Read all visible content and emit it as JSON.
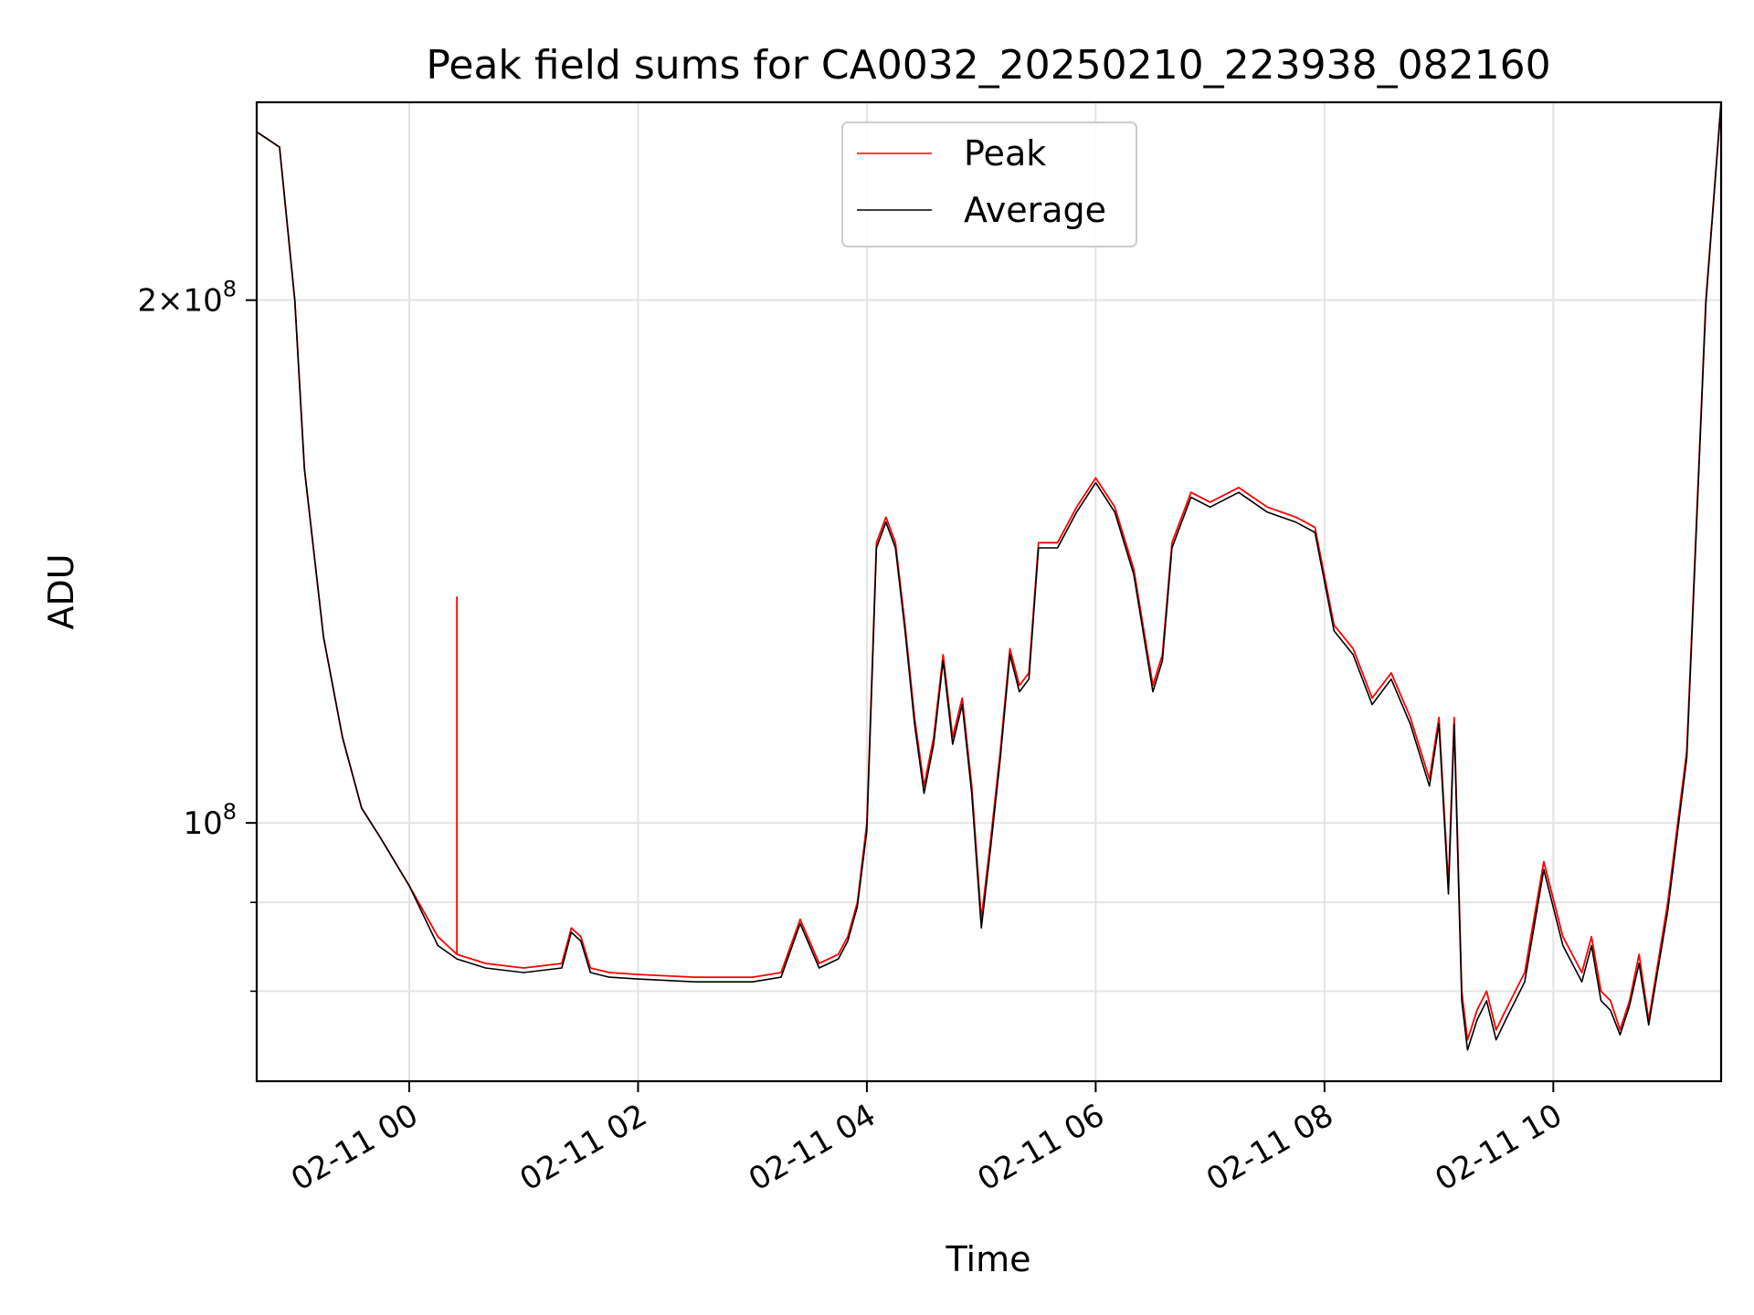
{
  "chart_data": {
    "type": "line",
    "title": "Peak field sums for CA0032_20250210_223938_082160",
    "xlabel": "Time",
    "ylabel": "ADU",
    "y_scale": "log",
    "ylim": [
      71000000,
      260000000
    ],
    "xlim": [
      "2025-02-10 22:40",
      "2025-02-11 11:28"
    ],
    "grid": true,
    "legend_position": "top-center",
    "x_tick_labels": [
      "02-11 00",
      "02-11 02",
      "02-11 04",
      "02-11 06",
      "02-11 08",
      "02-11 10"
    ],
    "x_tick_values": [
      "2025-02-11 00:00",
      "2025-02-11 02:00",
      "2025-02-11 04:00",
      "2025-02-11 06:00",
      "2025-02-11 08:00",
      "2025-02-11 10:00"
    ],
    "y_tick_labels": [
      {
        "value": 100000000,
        "mantissa": "",
        "exponent": "8"
      },
      {
        "value": 200000000,
        "mantissa": "2",
        "exponent": "8"
      }
    ],
    "y_minor_ticks": [
      80000000,
      90000000
    ],
    "x": [
      "2025-02-10 22:40",
      "2025-02-10 22:52",
      "2025-02-10 23:00",
      "2025-02-10 23:05",
      "2025-02-10 23:15",
      "2025-02-10 23:25",
      "2025-02-10 23:35",
      "2025-02-10 23:45",
      "2025-02-11 00:00",
      "2025-02-11 00:15",
      "2025-02-11 00:25",
      "2025-02-11 00:40",
      "2025-02-11 01:00",
      "2025-02-11 01:20",
      "2025-02-11 01:25",
      "2025-02-11 01:30",
      "2025-02-11 01:35",
      "2025-02-11 01:45",
      "2025-02-11 02:00",
      "2025-02-11 02:30",
      "2025-02-11 03:00",
      "2025-02-11 03:15",
      "2025-02-11 03:25",
      "2025-02-11 03:35",
      "2025-02-11 03:45",
      "2025-02-11 03:50",
      "2025-02-11 03:55",
      "2025-02-11 04:00",
      "2025-02-11 04:05",
      "2025-02-11 04:10",
      "2025-02-11 04:15",
      "2025-02-11 04:20",
      "2025-02-11 04:25",
      "2025-02-11 04:30",
      "2025-02-11 04:35",
      "2025-02-11 04:40",
      "2025-02-11 04:45",
      "2025-02-11 04:50",
      "2025-02-11 04:55",
      "2025-02-11 05:00",
      "2025-02-11 05:05",
      "2025-02-11 05:10",
      "2025-02-11 05:15",
      "2025-02-11 05:20",
      "2025-02-11 05:25",
      "2025-02-11 05:30",
      "2025-02-11 05:40",
      "2025-02-11 05:50",
      "2025-02-11 06:00",
      "2025-02-11 06:10",
      "2025-02-11 06:20",
      "2025-02-11 06:30",
      "2025-02-11 06:35",
      "2025-02-11 06:40",
      "2025-02-11 06:50",
      "2025-02-11 07:00",
      "2025-02-11 07:15",
      "2025-02-11 07:30",
      "2025-02-11 07:45",
      "2025-02-11 07:55",
      "2025-02-11 08:05",
      "2025-02-11 08:15",
      "2025-02-11 08:25",
      "2025-02-11 08:35",
      "2025-02-11 08:45",
      "2025-02-11 08:55",
      "2025-02-11 09:00",
      "2025-02-11 09:05",
      "2025-02-11 09:08",
      "2025-02-11 09:12",
      "2025-02-11 09:15",
      "2025-02-11 09:20",
      "2025-02-11 09:25",
      "2025-02-11 09:30",
      "2025-02-11 09:35",
      "2025-02-11 09:45",
      "2025-02-11 09:55",
      "2025-02-11 10:05",
      "2025-02-11 10:15",
      "2025-02-11 10:20",
      "2025-02-11 10:25",
      "2025-02-11 10:30",
      "2025-02-11 10:35",
      "2025-02-11 10:40",
      "2025-02-11 10:45",
      "2025-02-11 10:50",
      "2025-02-11 11:00",
      "2025-02-11 11:10",
      "2025-02-11 11:20",
      "2025-02-11 11:28"
    ],
    "series": [
      {
        "name": "Peak",
        "color": "#ff0000",
        "values": [
          250000000,
          245000000,
          200000000,
          160000000,
          128000000,
          112000000,
          102000000,
          98000000,
          92000000,
          86000000,
          84000000,
          83000000,
          82500000,
          83000000,
          87000000,
          86000000,
          82500000,
          82000000,
          81800000,
          81500000,
          81500000,
          82000000,
          88000000,
          83000000,
          84000000,
          86000000,
          90000000,
          100000000,
          145000000,
          150000000,
          145000000,
          130000000,
          115000000,
          105000000,
          112000000,
          125000000,
          112000000,
          118000000,
          105000000,
          88000000,
          98000000,
          110000000,
          126000000,
          120000000,
          122000000,
          145000000,
          145000000,
          152000000,
          158000000,
          152000000,
          140000000,
          120000000,
          125000000,
          145000000,
          155000000,
          153000000,
          156000000,
          152000000,
          150000000,
          148000000,
          130000000,
          126000000,
          118000000,
          122000000,
          115000000,
          106000000,
          115000000,
          92000000,
          115000000,
          80000000,
          75000000,
          78000000,
          80000000,
          76000000,
          78000000,
          82000000,
          95000000,
          86000000,
          82000000,
          86000000,
          80000000,
          79000000,
          76000000,
          79000000,
          84000000,
          77000000,
          90000000,
          110000000,
          200000000,
          260000000
        ]
      },
      {
        "name": "Average",
        "color": "#000000",
        "values": [
          250000000,
          245000000,
          200000000,
          160000000,
          128000000,
          112000000,
          102000000,
          98000000,
          92000000,
          85000000,
          83500000,
          82500000,
          82000000,
          82500000,
          86500000,
          85500000,
          82000000,
          81500000,
          81300000,
          81000000,
          81000000,
          81500000,
          87500000,
          82500000,
          83500000,
          85500000,
          89500000,
          99000000,
          144000000,
          149000000,
          144000000,
          129000000,
          114000000,
          104000000,
          111000000,
          124000000,
          111000000,
          117000000,
          104000000,
          87000000,
          97000000,
          109000000,
          125000000,
          119000000,
          121000000,
          144000000,
          144000000,
          151000000,
          157000000,
          151000000,
          139000000,
          119000000,
          124000000,
          144000000,
          154000000,
          152000000,
          155000000,
          151000000,
          149000000,
          147000000,
          129000000,
          125000000,
          117000000,
          121000000,
          114000000,
          105000000,
          114000000,
          91000000,
          114000000,
          79000000,
          74000000,
          77000000,
          79000000,
          75000000,
          77000000,
          81000000,
          94000000,
          85000000,
          81000000,
          85000000,
          79000000,
          78000000,
          75500000,
          78500000,
          83000000,
          76500000,
          89000000,
          109000000,
          199000000,
          260000000
        ]
      }
    ],
    "annotations": [
      {
        "type": "spike",
        "series": "Peak",
        "x": "2025-02-11 00:25",
        "y": 135000000
      }
    ]
  }
}
